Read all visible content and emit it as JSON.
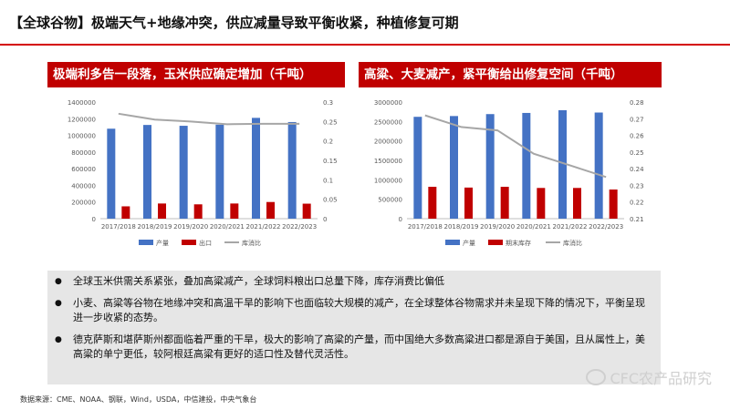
{
  "header": {
    "title": "【全球谷物】极端天气+地缘冲突，供应减量导致平衡收紧，种植修复可期"
  },
  "panels": {
    "left_title": "极端利多告一段落，玉米供应确定增加（千吨）",
    "right_title": "高粱、大麦减产，紧平衡给出修复空间（千吨）"
  },
  "colors": {
    "accent": "#c00000",
    "bar_blue": "#4472c4",
    "bar_red": "#c00000",
    "line_gray": "#a6a6a6"
  },
  "chart_data": [
    {
      "type": "bar",
      "categories": [
        "2017/2018",
        "2018/2019",
        "2019/2020",
        "2020/2021",
        "2021/2022",
        "2022/2023"
      ],
      "series": [
        {
          "name": "产量",
          "kind": "bar",
          "axis": "left",
          "values": [
            1080000,
            1125000,
            1115000,
            1128000,
            1210000,
            1160000
          ]
        },
        {
          "name": "出口",
          "kind": "bar",
          "axis": "left",
          "values": [
            148000,
            182000,
            172000,
            182000,
            200000,
            180000
          ]
        },
        {
          "name": "库消比",
          "kind": "line",
          "axis": "right",
          "values": [
            0.27,
            0.255,
            0.25,
            0.243,
            0.244,
            0.244
          ]
        }
      ],
      "ylim": [
        0,
        1400000
      ],
      "y_ticks": [
        "0",
        "200000",
        "400000",
        "600000",
        "800000",
        "1000000",
        "1200000",
        "1400000"
      ],
      "y2lim": [
        0,
        0.3
      ],
      "y2_ticks": [
        "0",
        "0.05",
        "0.1",
        "0.15",
        "0.2",
        "0.25",
        "0.3"
      ],
      "legend": "bottom"
    },
    {
      "type": "bar",
      "categories": [
        "2017/2018",
        "2018/2019",
        "2019/2020",
        "2020/2021",
        "2021/2022",
        "2022/2023"
      ],
      "series": [
        {
          "name": "产量",
          "kind": "bar",
          "axis": "left",
          "values": [
            2620000,
            2640000,
            2690000,
            2720000,
            2790000,
            2730000
          ]
        },
        {
          "name": "期末库存",
          "kind": "bar",
          "axis": "left",
          "values": [
            820000,
            800000,
            820000,
            790000,
            790000,
            750000
          ]
        },
        {
          "name": "库消比",
          "kind": "line",
          "axis": "right",
          "values": [
            0.272,
            0.265,
            0.263,
            0.249,
            0.242,
            0.235
          ]
        }
      ],
      "ylim": [
        0,
        3000000
      ],
      "y_ticks": [
        "0",
        "500000",
        "1000000",
        "1500000",
        "2000000",
        "2500000",
        "3000000"
      ],
      "y2lim": [
        0.21,
        0.28
      ],
      "y2_ticks": [
        "0.21",
        "0.22",
        "0.23",
        "0.24",
        "0.25",
        "0.26",
        "0.27",
        "0.28"
      ],
      "legend": "bottom"
    }
  ],
  "bullets": [
    "全球玉米供需关系紧张，叠加高粱减产，全球饲料粮出口总量下降，库存消费比偏低",
    "小麦、高粱等谷物在地缘冲突和高温干旱的影响下也面临较大规模的减产，在全球整体谷物需求并未呈现下降的情况下，平衡呈现进一步收紧的态势。",
    "德克萨斯和堪萨斯州都面临着严重的干旱，极大的影响了高粱的产量，而中国绝大多数高粱进口都是源自于美国，且从属性上，美高粱的单宁更低，较阿根廷高粱有更好的适口性及替代灵活性。"
  ],
  "source": "数据来源：CME、NOAA、钢联，Wind，USDA，中信建投，中央气象台",
  "watermark": "CFC农产品研究"
}
